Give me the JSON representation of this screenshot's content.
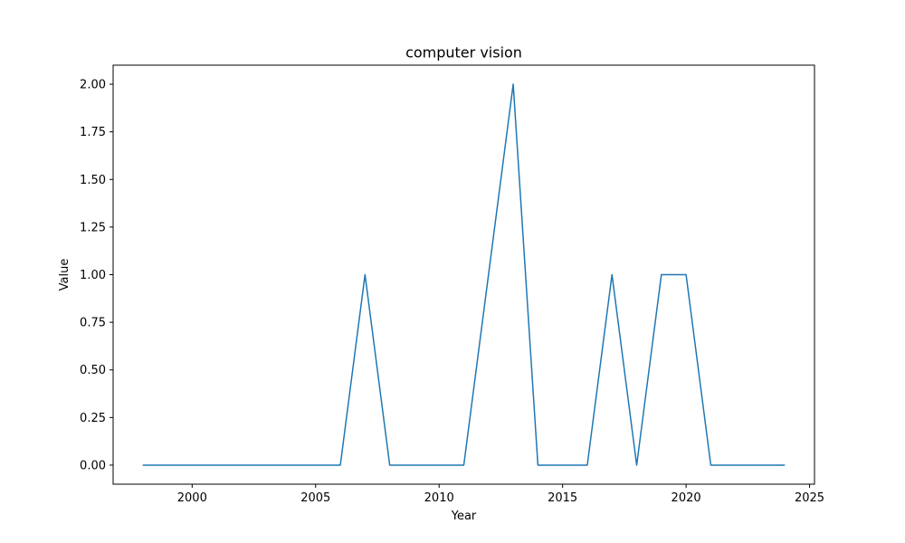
{
  "chart_data": {
    "type": "line",
    "title": "computer vision",
    "xlabel": "Year",
    "ylabel": "Value",
    "xlim": [
      1996.8,
      2025.2
    ],
    "ylim": [
      -0.1,
      2.1
    ],
    "xticks": [
      2000,
      2005,
      2010,
      2015,
      2020,
      2025
    ],
    "yticks": [
      0.0,
      0.25,
      0.5,
      0.75,
      1.0,
      1.25,
      1.5,
      1.75,
      2.0
    ],
    "ytick_labels": [
      "0.00",
      "0.25",
      "0.50",
      "0.75",
      "1.00",
      "1.25",
      "1.50",
      "1.75",
      "2.00"
    ],
    "grid": false,
    "series": [
      {
        "color": "#1f77b4",
        "x": [
          1998,
          1999,
          2000,
          2001,
          2002,
          2003,
          2004,
          2005,
          2006,
          2007,
          2008,
          2009,
          2010,
          2011,
          2012,
          2013,
          2014,
          2015,
          2016,
          2017,
          2018,
          2019,
          2020,
          2021,
          2022,
          2023,
          2024
        ],
        "y": [
          0,
          0,
          0,
          0,
          0,
          0,
          0,
          0,
          0,
          1,
          0,
          0,
          0,
          0,
          1,
          2,
          0,
          0,
          0,
          1,
          0,
          1,
          1,
          0,
          0,
          0,
          0
        ]
      }
    ]
  }
}
